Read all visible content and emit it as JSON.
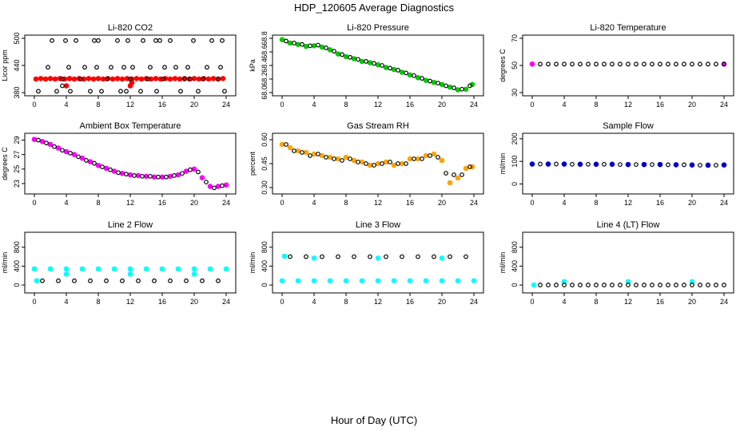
{
  "page_title": "HDP_120605  Average Diagnostics",
  "x_axis_label": "Hour of Day (UTC)",
  "colors": {
    "frame": "#000000",
    "black_series": "#000000",
    "red": "#ff0000",
    "green": "#00cc00",
    "magenta": "#ff00ff",
    "blue": "#0000cc",
    "orange": "#ffa500",
    "cyan": "#00ffff"
  },
  "chart_data": [
    {
      "type": "scatter",
      "title": "Li-820 CO2",
      "xlabel": "",
      "ylabel": "Licor ppm",
      "xlim": [
        0,
        24
      ],
      "ylim": [
        380,
        500
      ],
      "x_ticks": [
        "0",
        "4",
        "8",
        "12",
        "16",
        "20",
        "24"
      ],
      "y_ticks": [
        "380",
        "440",
        "500"
      ],
      "series": [
        {
          "color": "#ff0000",
          "x": [
            0.2,
            0.8,
            1.4,
            2.0,
            2.6,
            3.2,
            3.8,
            4.4,
            5.0,
            5.6,
            6.2,
            6.8,
            7.4,
            8.0,
            8.6,
            9.2,
            9.8,
            10.4,
            11.0,
            11.6,
            12.2,
            12.8,
            13.4,
            14.0,
            14.6,
            15.2,
            15.8,
            16.4,
            17.0,
            17.6,
            18.2,
            18.8,
            19.4,
            20.0,
            20.6,
            21.2,
            21.8,
            22.4,
            23.0,
            23.6,
            4.0,
            12.0,
            12.2
          ],
          "y": [
            410,
            411,
            410,
            411,
            410,
            411,
            410,
            411,
            410,
            411,
            410,
            411,
            410,
            411,
            410,
            411,
            410,
            411,
            410,
            411,
            410,
            411,
            410,
            411,
            410,
            411,
            410,
            411,
            410,
            411,
            410,
            411,
            410,
            411,
            410,
            411,
            410,
            411,
            410,
            411,
            395,
            395,
            402
          ]
        },
        {
          "color": "#000000",
          "x": [
            0.5,
            1.7,
            2.2,
            2.8,
            3.5,
            3.9,
            4.3,
            4.5,
            5.2,
            5.8,
            6.3,
            7.0,
            7.5,
            7.8,
            8.0,
            8.4,
            9.1,
            9.6,
            10.4,
            10.8,
            11.2,
            11.7,
            12.0,
            12.3,
            13.3,
            13.6,
            14.2,
            14.5,
            15.3,
            15.7,
            16.1,
            16.3,
            17.0,
            17.7,
            18.3,
            18.8,
            19.2,
            19.9,
            20.5,
            21.1,
            21.6,
            22.2,
            23.0,
            23.3,
            23.5,
            23.8,
            3.5,
            11.5,
            15.2,
            19.5
          ],
          "y": [
            383,
            436,
            495,
            383,
            410,
            495,
            436,
            383,
            495,
            410,
            436,
            383,
            495,
            436,
            495,
            383,
            410,
            436,
            495,
            383,
            436,
            495,
            410,
            436,
            383,
            495,
            410,
            436,
            383,
            495,
            410,
            436,
            495,
            436,
            383,
            410,
            436,
            495,
            383,
            410,
            436,
            495,
            410,
            436,
            495,
            383,
            395,
            383,
            495,
            410
          ]
        }
      ]
    },
    {
      "type": "scatter",
      "title": "Li-820 Pressure",
      "xlabel": "",
      "ylabel": "kPa",
      "xlim": [
        0,
        24
      ],
      "ylim": [
        68.0,
        68.8
      ],
      "x_ticks": [
        "0",
        "4",
        "8",
        "12",
        "16",
        "20",
        "24"
      ],
      "y_ticks": [
        "68.0",
        "68.2",
        "68.4",
        "68.6",
        "68.8"
      ],
      "series": [
        {
          "color": "#00cc00",
          "x": [
            0,
            1,
            2,
            3,
            4,
            5,
            6,
            7,
            8,
            9,
            10,
            11,
            12,
            13,
            14,
            15,
            16,
            17,
            18,
            19,
            20,
            21,
            22,
            23,
            23.8
          ],
          "y": [
            68.78,
            68.73,
            68.71,
            68.68,
            68.69,
            68.67,
            68.63,
            68.57,
            68.53,
            68.5,
            68.46,
            68.44,
            68.41,
            68.37,
            68.34,
            68.3,
            68.26,
            68.22,
            68.18,
            68.15,
            68.12,
            68.08,
            68.04,
            68.05,
            68.12
          ]
        },
        {
          "color": "#000000",
          "x": [
            0.5,
            1.5,
            2.5,
            3.5,
            4.5,
            5.5,
            6.5,
            7.5,
            8.5,
            9.5,
            10.5,
            11.5,
            12.5,
            13.5,
            14.5,
            15.5,
            16.5,
            17.5,
            18.5,
            19.5,
            20.5,
            21.5,
            22.5,
            23.5
          ],
          "y": [
            68.76,
            68.73,
            68.71,
            68.69,
            68.7,
            68.66,
            68.61,
            68.56,
            68.52,
            68.49,
            68.46,
            68.43,
            68.4,
            68.36,
            68.33,
            68.29,
            68.25,
            68.21,
            68.17,
            68.14,
            68.1,
            68.07,
            68.05,
            68.1
          ]
        }
      ]
    },
    {
      "type": "scatter",
      "title": "Li-820 Temperature",
      "xlabel": "",
      "ylabel": "degrees C",
      "xlim": [
        0,
        24
      ],
      "ylim": [
        30,
        70
      ],
      "x_ticks": [
        "0",
        "4",
        "8",
        "12",
        "16",
        "20",
        "24"
      ],
      "y_ticks": [
        "30",
        "50",
        "70"
      ],
      "series": [
        {
          "color": "#ff00ff",
          "x": [
            0,
            24
          ],
          "y": [
            51,
            51
          ]
        },
        {
          "color": "#000000",
          "x": [
            1,
            2,
            3,
            4,
            5,
            6,
            7,
            8,
            9,
            10,
            11,
            12,
            13,
            14,
            15,
            16,
            17,
            18,
            19,
            20,
            21,
            22,
            23,
            24
          ],
          "y": [
            51,
            51,
            51,
            51,
            51,
            51,
            51,
            51,
            51,
            51,
            51,
            51,
            51,
            51,
            51,
            51,
            51,
            51,
            51,
            51,
            51,
            51,
            51,
            51
          ]
        }
      ]
    },
    {
      "type": "scatter",
      "title": "Ambient Box Temperature",
      "xlabel": "",
      "ylabel": "degrees C",
      "xlim": [
        0,
        24
      ],
      "ylim": [
        22,
        29.5
      ],
      "x_ticks": [
        "0",
        "4",
        "8",
        "12",
        "16",
        "20",
        "24"
      ],
      "y_ticks": [
        "23",
        "25",
        "27",
        "29"
      ],
      "series": [
        {
          "color": "#ff00ff",
          "x": [
            0,
            1,
            2,
            3,
            4,
            5,
            6,
            7,
            8,
            9,
            10,
            11,
            12,
            13,
            14,
            15,
            16,
            17,
            18,
            19,
            20,
            21,
            22,
            23,
            24
          ],
          "y": [
            29.1,
            28.8,
            28.4,
            27.9,
            27.4,
            27.0,
            26.5,
            26.0,
            25.5,
            25.1,
            24.7,
            24.4,
            24.2,
            24.1,
            24.0,
            23.9,
            23.9,
            24.0,
            24.2,
            24.7,
            25.0,
            23.8,
            22.6,
            22.6,
            22.8
          ]
        },
        {
          "color": "#000000",
          "x": [
            0.5,
            1.5,
            2.5,
            3.5,
            4.5,
            5.5,
            6.5,
            7.5,
            8.5,
            9.5,
            10.5,
            11.5,
            12.5,
            13.5,
            14.5,
            15.5,
            16.5,
            17.5,
            18.5,
            19.5,
            20.5,
            21.5,
            22.5,
            23.5
          ],
          "y": [
            29.0,
            28.6,
            28.1,
            27.6,
            27.2,
            26.7,
            26.2,
            25.8,
            25.3,
            24.9,
            24.5,
            24.3,
            24.1,
            24.0,
            24.0,
            23.9,
            23.9,
            24.1,
            24.4,
            24.9,
            24.6,
            23.2,
            22.4,
            22.7
          ]
        }
      ]
    },
    {
      "type": "scatter",
      "title": "Gas Stream RH",
      "xlabel": "",
      "ylabel": "percent",
      "xlim": [
        0,
        24
      ],
      "ylim": [
        0.28,
        0.62
      ],
      "x_ticks": [
        "0",
        "4",
        "8",
        "12",
        "16",
        "20",
        "24"
      ],
      "y_ticks": [
        "0.30",
        "0.45",
        "0.60"
      ],
      "series": [
        {
          "color": "#ffa500",
          "x": [
            0,
            1,
            2,
            3,
            4,
            5,
            6,
            7,
            8,
            9,
            10,
            11,
            12,
            13,
            14,
            15,
            16,
            17,
            18,
            19,
            20,
            21,
            22,
            23,
            23.8
          ],
          "y": [
            0.57,
            0.55,
            0.53,
            0.52,
            0.51,
            0.5,
            0.49,
            0.48,
            0.49,
            0.47,
            0.46,
            0.44,
            0.45,
            0.46,
            0.44,
            0.45,
            0.48,
            0.48,
            0.5,
            0.51,
            0.47,
            0.33,
            0.36,
            0.42,
            0.43
          ]
        },
        {
          "color": "#000000",
          "x": [
            0.5,
            1.5,
            2.5,
            3.5,
            4.5,
            5.5,
            6.5,
            7.5,
            8.5,
            9.5,
            10.5,
            11.5,
            12.5,
            13.5,
            14.5,
            15.5,
            16.5,
            17.5,
            18.5,
            19.5,
            20.5,
            21.5,
            22.5,
            23.5
          ],
          "y": [
            0.57,
            0.53,
            0.52,
            0.5,
            0.51,
            0.49,
            0.48,
            0.47,
            0.48,
            0.46,
            0.45,
            0.44,
            0.45,
            0.46,
            0.45,
            0.45,
            0.48,
            0.48,
            0.5,
            0.49,
            0.39,
            0.38,
            0.38,
            0.43
          ]
        }
      ]
    },
    {
      "type": "scatter",
      "title": "Sample Flow",
      "xlabel": "",
      "ylabel": "ml/min",
      "xlim": [
        0,
        24
      ],
      "ylim": [
        -30,
        210
      ],
      "x_ticks": [
        "0",
        "4",
        "8",
        "12",
        "16",
        "20",
        "24"
      ],
      "y_ticks": [
        "0",
        "100",
        "200"
      ],
      "series": [
        {
          "color": "#0000cc",
          "x": [
            0,
            2,
            4,
            6,
            8,
            10,
            12,
            14,
            16,
            18,
            20,
            22,
            24
          ],
          "y": [
            88,
            88,
            88,
            87,
            87,
            87,
            86,
            86,
            86,
            85,
            84,
            83,
            84
          ]
        },
        {
          "color": "#000000",
          "x": [
            1,
            3,
            5,
            7,
            9,
            11,
            13,
            15,
            17,
            19,
            21,
            23
          ],
          "y": [
            88,
            88,
            87,
            87,
            87,
            86,
            86,
            86,
            85,
            85,
            83,
            83
          ]
        }
      ]
    },
    {
      "type": "scatter",
      "title": "Line 2 Flow",
      "xlabel": "",
      "ylabel": "ml/min",
      "xlim": [
        0,
        24
      ],
      "ylim": [
        -100,
        1050
      ],
      "x_ticks": [
        "0",
        "4",
        "8",
        "12",
        "16",
        "20",
        "24"
      ],
      "y_ticks": [
        "0",
        "400",
        "800"
      ],
      "series": [
        {
          "color": "#00ffff",
          "x": [
            0,
            2,
            4,
            6,
            8,
            10,
            12,
            14,
            16,
            18,
            20,
            22,
            24,
            4,
            12,
            20,
            0.3
          ],
          "y": [
            340,
            340,
            340,
            340,
            340,
            340,
            340,
            340,
            340,
            340,
            340,
            340,
            340,
            230,
            230,
            230,
            90
          ]
        },
        {
          "color": "#000000",
          "x": [
            1,
            3,
            5,
            7,
            9,
            11,
            13,
            15,
            17,
            19,
            21,
            23
          ],
          "y": [
            90,
            90,
            90,
            90,
            90,
            90,
            90,
            90,
            90,
            90,
            90,
            90
          ]
        }
      ]
    },
    {
      "type": "scatter",
      "title": "Line 3 Flow",
      "xlabel": "",
      "ylabel": "ml/min",
      "xlim": [
        0,
        24
      ],
      "ylim": [
        -100,
        1050
      ],
      "x_ticks": [
        "0",
        "4",
        "8",
        "12",
        "16",
        "20",
        "24"
      ],
      "y_ticks": [
        "0",
        "400",
        "800"
      ],
      "series": [
        {
          "color": "#00ffff",
          "x": [
            0,
            2,
            4,
            6,
            8,
            10,
            12,
            14,
            16,
            18,
            20,
            22,
            24,
            0.3,
            4,
            12,
            20
          ],
          "y": [
            90,
            90,
            90,
            90,
            90,
            90,
            90,
            90,
            90,
            90,
            90,
            90,
            90,
            610,
            570,
            570,
            570
          ]
        },
        {
          "color": "#000000",
          "x": [
            1,
            3,
            5,
            7,
            9,
            11,
            13,
            15,
            17,
            19,
            21,
            23
          ],
          "y": [
            600,
            600,
            600,
            600,
            600,
            600,
            600,
            600,
            600,
            600,
            600,
            600
          ]
        }
      ]
    },
    {
      "type": "scatter",
      "title": "Line 4 (LT) Flow",
      "xlabel": "",
      "ylabel": "ml/min",
      "xlim": [
        0,
        24
      ],
      "ylim": [
        -100,
        1050
      ],
      "x_ticks": [
        "0",
        "4",
        "8",
        "12",
        "16",
        "20",
        "24"
      ],
      "y_ticks": [
        "0",
        "400",
        "800"
      ],
      "series": [
        {
          "color": "#00ffff",
          "x": [
            0.2,
            4,
            12,
            20
          ],
          "y": [
            0,
            70,
            70,
            70
          ]
        },
        {
          "color": "#000000",
          "x": [
            1,
            2,
            3,
            4,
            5,
            6,
            7,
            8,
            9,
            10,
            11,
            12,
            13,
            14,
            15,
            16,
            17,
            18,
            19,
            20,
            21,
            22,
            23,
            24
          ],
          "y": [
            0,
            0,
            0,
            0,
            0,
            0,
            0,
            0,
            0,
            0,
            0,
            0,
            0,
            0,
            0,
            0,
            0,
            0,
            0,
            0,
            0,
            0,
            0,
            0
          ]
        }
      ]
    }
  ]
}
